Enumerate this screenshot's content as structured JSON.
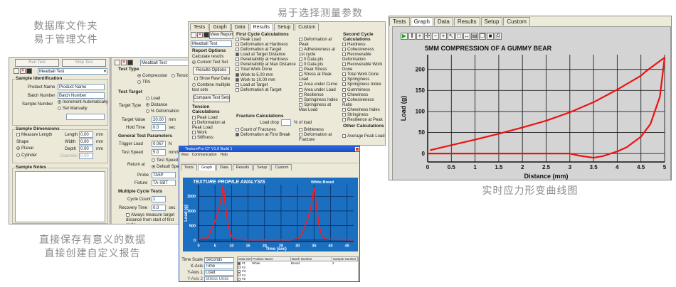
{
  "captions": {
    "database_line1": "数据库文件夹",
    "database_line2": "易于管理文件",
    "params": "易于选择测量参数",
    "save_line1": "直接保存有意义的数据",
    "save_line2": "直接创建自定义报告",
    "realtime": "实时应力形变曲线图"
  },
  "sample_panel": {
    "run_test": "Run Test",
    "stop_test": "Stop Test",
    "test_select": "Meatball Test",
    "sample_identification": "Sample Identification",
    "product_name_label": "Product Name",
    "product_name_value": "Product Name",
    "batch_number_label": "Batch Number",
    "batch_number_value": "Batch Number",
    "sample_number_label": "Sample Number",
    "increment_auto": "Increment Automatically",
    "set_manually": "Set Manually",
    "sample_dimensions": "Sample Dimensions",
    "measure_length": "Measure Length",
    "length_label": "Length",
    "length_value": "0.00",
    "width_label": "Width",
    "width_value": "0.00",
    "depth_label": "Depth",
    "depth_value": "0.00",
    "diameter_label": "Diameter",
    "diameter_value": "0.00",
    "unit_mm": "mm",
    "shape_label": "Shape",
    "shape_planar": "Planar",
    "shape_cylinder": "Cylinder",
    "sample_notes": "Sample Notes"
  },
  "test_panel": {
    "test_name": "Meatball Test",
    "test_type": "Test Type",
    "compression": "Compression",
    "tension": "Tension",
    "tpa": "TPA",
    "test_target": "Test Target",
    "target_type_label": "Target Type",
    "target_load": "Load",
    "target_distance": "Distance",
    "target_deformation": "% Deformation",
    "target_value_label": "Target Value",
    "target_value": "20.00",
    "hold_time_label": "Hold Time",
    "hold_time": "0.0",
    "unit_mm": "mm",
    "unit_sec": "sec",
    "general_params": "General Test Parameters",
    "trigger_load_label": "Trigger Load",
    "trigger_load": "0.067",
    "unit_n": "N",
    "test_speed_label": "Test Speed",
    "test_speed": "5.0",
    "unit_mms": "mm/s",
    "return_at_label": "Return at",
    "return_test_speed": "Test Speed",
    "return_default_speed": "Default Speed",
    "probe_label": "Probe",
    "probe_value": "TA5P",
    "fixture_label": "Fixture",
    "fixture_value": "TA-SBT",
    "multiple_cycle": "Multiple Cycle Tests",
    "cycle_count_label": "Cycle Count",
    "cycle_count": "1",
    "recovery_time_label": "Recovery Time",
    "recovery_time": "0.0",
    "always_measure": "Always measure target distance from start of first cycle."
  },
  "report_window": {
    "tabs": [
      "Tests",
      "Graph",
      "Data",
      "Results",
      "Setup",
      "Custom"
    ],
    "active_tab": "Results",
    "view_report": "View Report",
    "select_value": "Meatball Test",
    "report_options": "Report Options",
    "calculate_results": "Calculate results",
    "current_test": "Current Test Set",
    "results_options": "Results Options",
    "show_raw_data": "Show Raw Data",
    "multiple_sets": "Combine multiple test sets",
    "compare_tests": "Compare Test Sets",
    "tension_calc": "Tension Calculations",
    "tension_items": [
      "Peak Load",
      "Deformation at Peak Load",
      "Work",
      "Stiffness"
    ],
    "first_cycle": "First Cycle Calculations",
    "first_items_a": [
      "Peak Load",
      "Deformation at Hardness",
      "Deformation at Target",
      "Load at Target Distance",
      "Penetrability at Hardness",
      "Penetrability at Max Distance",
      "Total Work Done",
      "Work to 5.00 mm",
      "Work to 10.00 mm",
      "Load at Target",
      "Deformation at Target"
    ],
    "first_items_b": [
      "Deformation at Peak",
      "Adhesiveness at 1st cycle",
      "0 Data pts",
      "0 Data pts",
      "Peak Stress",
      "Stress at Peak Load",
      "Area under Curve",
      "Area under Load",
      "Resilience",
      "Springiness Index",
      "Springiness at Max Load"
    ],
    "fracture_calc": "Fracture Calculations",
    "fracture_label": "Load drop",
    "fracture_unit": "% of load",
    "fracture_items": [
      "Count of Fractures",
      "Brittleness",
      "Deformation at First Break",
      "Deformation at Fracture"
    ],
    "second_cycle": "Second Cycle Calculations",
    "second_items": [
      "Hardness",
      "Cohesiveness",
      "Recoverable Deformation",
      "Recoverable Work Done",
      "Total Work Done",
      "Springiness",
      "Springiness Index",
      "Gumminess",
      "Chewiness",
      "Cohesiveness Ratio",
      "Chewiness Index",
      "Stringiness",
      "Resilience at Peak"
    ],
    "other_calc": "Other Calculations",
    "other_items": [
      "Average Peak Load"
    ]
  },
  "tpa_window": {
    "title": "TexturePro CT V1.0 Build 1",
    "menu": [
      "View",
      "Communication",
      "Help"
    ],
    "tabs": [
      "Tests",
      "Graph",
      "Data",
      "Results",
      "Setup",
      "Custom"
    ],
    "active_tab": "Graph",
    "time_scale_label": "Time Scale",
    "time_scale_value": "Seconds",
    "x_axis_label": "X-Axis",
    "x_axis_value": "Time",
    "y_axis1_label": "Y-Axis 1",
    "y_axis1_value": "Load",
    "y_axis2_label": "Y-Axis 2",
    "y_axis2_value": "Stress Units",
    "table_headers": [
      "Data Set",
      "Product Name",
      "Batch Number",
      "Sample Number"
    ],
    "table_rows": [
      {
        "set": "#1",
        "checked": true,
        "product": "White",
        "batch": "Bread",
        "sample": "2"
      },
      {
        "set": "#2",
        "checked": false,
        "product": "",
        "batch": "",
        "sample": ""
      },
      {
        "set": "#3",
        "checked": false,
        "product": "",
        "batch": "",
        "sample": ""
      },
      {
        "set": "#4",
        "checked": false,
        "product": "",
        "batch": "",
        "sample": ""
      },
      {
        "set": "#5",
        "checked": false,
        "product": "",
        "batch": "",
        "sample": ""
      }
    ]
  },
  "graph_window": {
    "tabs": [
      "Tests",
      "Graph",
      "Data",
      "Results",
      "Setup",
      "Custom"
    ],
    "active_tab": "Graph",
    "toolbar_icons": [
      "play-icon",
      "pause-icon",
      "crosshair-icon",
      "move-icon",
      "zoom-out-icon",
      "zoom-in-icon",
      "pointer-icon",
      "select-box-icon",
      "split-icon",
      "properties-icon",
      "copy-icon",
      "save-icon",
      "print-icon"
    ]
  },
  "chart_data": [
    {
      "type": "line",
      "title": "TEXTURE PROFILE ANALYSIS",
      "subtitle": "White Bread",
      "xlabel": "Time (sec)",
      "ylabel": "Load (g)",
      "xlim": [
        0,
        47
      ],
      "ylim": [
        -50,
        1900
      ],
      "xticks": [
        0,
        5,
        10,
        15,
        20,
        25,
        30,
        35,
        40,
        45
      ],
      "yticks": [
        0,
        500,
        1000,
        1500
      ],
      "grid": true,
      "background": "#1a6fc0",
      "series": [
        {
          "color": "#ff1a1a",
          "x": [
            0,
            2,
            3,
            4,
            5,
            6,
            7,
            7.5,
            8,
            9,
            10,
            11,
            15,
            28,
            30,
            31,
            32,
            33,
            34,
            35,
            35.7,
            36.5,
            37.5,
            39,
            47
          ],
          "y": [
            20,
            50,
            120,
            400,
            650,
            1000,
            1500,
            1900,
            1300,
            500,
            120,
            30,
            10,
            10,
            40,
            150,
            400,
            700,
            1100,
            1800,
            1200,
            500,
            100,
            20,
            10
          ]
        }
      ]
    },
    {
      "type": "line",
      "title": "5MM COMPRESSION OF A GUMMY BEAR",
      "xlabel": "Distance (mm)",
      "ylabel": "Load (g)",
      "xlim": [
        0,
        5
      ],
      "ylim": [
        -20,
        235
      ],
      "xticks": [
        0.0,
        0.5,
        1.0,
        1.5,
        2.0,
        2.5,
        3.0,
        3.5,
        4.0,
        4.5,
        5.0
      ],
      "yticks": [
        0,
        50,
        100,
        150,
        200
      ],
      "grid": true,
      "background": "#d4d4d4",
      "series": [
        {
          "color": "#ee1111",
          "x": [
            0,
            3.0,
            3.2,
            3.5,
            3.7,
            4.0,
            4.2,
            4.5,
            4.7,
            4.9,
            5.0,
            4.9,
            4.6,
            4.5,
            4.0,
            3.5,
            3.0,
            2.5,
            2.0,
            1.5,
            1.0,
            0.5,
            0.05
          ],
          "y": [
            0,
            0,
            -5,
            -10,
            -6,
            5,
            15,
            40,
            70,
            135,
            228,
            220,
            195,
            185,
            152,
            122,
            98,
            78,
            62,
            47,
            33,
            20,
            8
          ]
        }
      ]
    }
  ]
}
